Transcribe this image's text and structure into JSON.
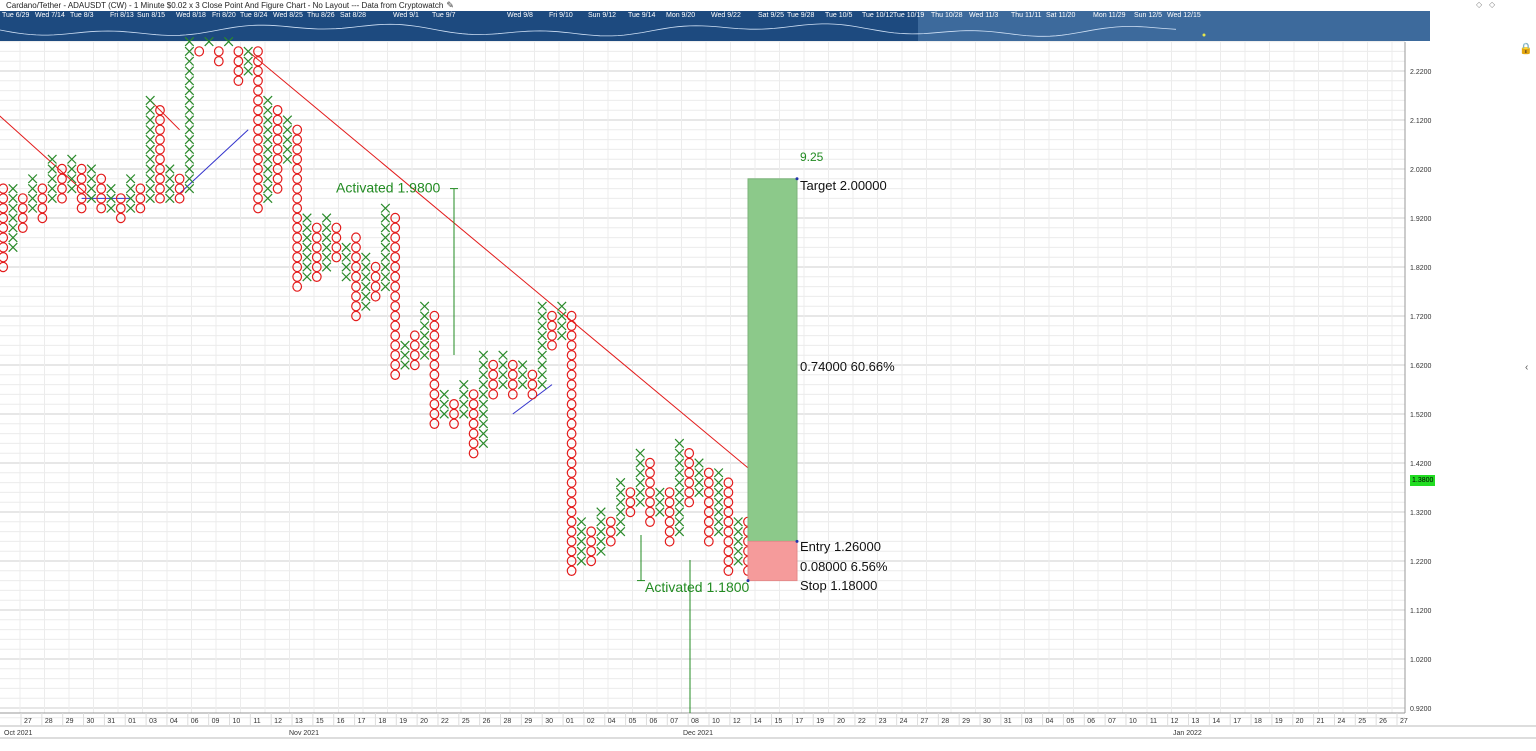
{
  "header": {
    "title": "Cardano/Tether - ADAUSDT (CW) - 1 Minute $0.02 x 3 Close Point And Figure Chart - No Layout --- Data from Cryptowatch"
  },
  "navigator": {
    "dates": [
      "Tue 6/29",
      "Wed 7/14",
      "Tue 8/3",
      "Fri 8/13",
      "Sun 8/15",
      "Wed 8/18",
      "Fri 8/20",
      "Tue 8/24",
      "Wed 8/25",
      "Thu 8/26",
      "Sat 8/28",
      "Wed 9/1",
      "Tue 9/7",
      "Wed 9/8",
      "Fri 9/10",
      "Sun 9/12",
      "Tue 9/14",
      "Mon 9/20",
      "Wed 9/22",
      "Sat 9/25",
      "Tue 9/28",
      "Tue 10/5",
      "Tue 10/12",
      "Tue 10/19",
      "Thu 10/28",
      "Wed 11/3",
      "Thu 11/11",
      "Sat 11/20",
      "Mon 11/29",
      "Sun 12/5",
      "Wed 12/15"
    ]
  },
  "icons": {
    "lock": "lock-icon",
    "collapse": "chevron-left-icon",
    "edit": "pencil-icon",
    "diamond1": "diamond-icon",
    "diamond2": "diamond-icon"
  },
  "colors": {
    "x_mark": "#2a8a2a",
    "o_mark": "#e31b1b",
    "trend_down": "#e31b1b",
    "trend_up": "#3333cc",
    "target_zone": "#8cc98a",
    "stop_zone": "#f59b9b",
    "annotation": "#228b22",
    "price_badge": "#22dd22",
    "nav_bg": "#1d4a7f"
  },
  "chart_data": {
    "type": "point-and-figure",
    "box_size": 0.02,
    "reversal": 3,
    "y_axis": {
      "ylim": [
        0.89,
        2.28
      ],
      "ticks": [
        "2.2200",
        "2.1200",
        "2.0200",
        "1.9200",
        "1.8200",
        "1.7200",
        "1.6200",
        "1.5200",
        "1.4200",
        "1.3200",
        "1.2200",
        "1.1200",
        "1.0200",
        "0.9200"
      ]
    },
    "last_price": "1.3800",
    "x_axis": {
      "day_labels": [
        "27",
        "28",
        "29",
        "30",
        "31",
        "01",
        "03",
        "04",
        "06",
        "09",
        "10",
        "11",
        "12",
        "13",
        "15",
        "16",
        "17",
        "18",
        "19",
        "20",
        "22",
        "25",
        "26",
        "28",
        "29",
        "30",
        "01",
        "02",
        "04",
        "05",
        "06",
        "07",
        "08",
        "10",
        "12",
        "14",
        "15",
        "17",
        "19",
        "20",
        "22",
        "23",
        "24",
        "27",
        "28",
        "29",
        "30",
        "31",
        "03",
        "04",
        "05",
        "06",
        "07",
        "10",
        "11",
        "12",
        "13",
        "14",
        "17",
        "18",
        "19",
        "20",
        "21",
        "24",
        "25",
        "26",
        "27"
      ],
      "month_labels": [
        "Oct 2021",
        "Nov 2021",
        "Dec 2021",
        "Jan 2022"
      ]
    },
    "columns": [
      {
        "t": "O",
        "hi": 1.98,
        "lo": 1.82
      },
      {
        "t": "X",
        "hi": 1.98,
        "lo": 1.86
      },
      {
        "t": "O",
        "hi": 1.96,
        "lo": 1.9
      },
      {
        "t": "X",
        "hi": 2.0,
        "lo": 1.94
      },
      {
        "t": "O",
        "hi": 1.98,
        "lo": 1.92
      },
      {
        "t": "X",
        "hi": 2.04,
        "lo": 1.96
      },
      {
        "t": "O",
        "hi": 2.02,
        "lo": 1.96
      },
      {
        "t": "X",
        "hi": 2.04,
        "lo": 1.98
      },
      {
        "t": "O",
        "hi": 2.02,
        "lo": 1.94
      },
      {
        "t": "X",
        "hi": 2.02,
        "lo": 1.96
      },
      {
        "t": "O",
        "hi": 2.0,
        "lo": 1.94
      },
      {
        "t": "X",
        "hi": 1.98,
        "lo": 1.94
      },
      {
        "t": "O",
        "hi": 1.96,
        "lo": 1.92
      },
      {
        "t": "X",
        "hi": 2.0,
        "lo": 1.94
      },
      {
        "t": "O",
        "hi": 1.98,
        "lo": 1.94
      },
      {
        "t": "X",
        "hi": 2.16,
        "lo": 1.96
      },
      {
        "t": "O",
        "hi": 2.14,
        "lo": 1.96
      },
      {
        "t": "X",
        "hi": 2.02,
        "lo": 1.96
      },
      {
        "t": "O",
        "hi": 2.0,
        "lo": 1.96
      },
      {
        "t": "X",
        "hi": 2.28,
        "lo": 1.98
      },
      {
        "t": "O",
        "hi": 2.26,
        "lo": 2.26
      },
      {
        "t": "X",
        "hi": 2.28,
        "lo": 2.28
      },
      {
        "t": "O",
        "hi": 2.26,
        "lo": 2.24
      },
      {
        "t": "X",
        "hi": 2.28,
        "lo": 2.28
      },
      {
        "t": "O",
        "hi": 2.26,
        "lo": 2.2
      },
      {
        "t": "X",
        "hi": 2.26,
        "lo": 2.22
      },
      {
        "t": "O",
        "hi": 2.26,
        "lo": 1.94
      },
      {
        "t": "X",
        "hi": 2.16,
        "lo": 1.96
      },
      {
        "t": "O",
        "hi": 2.14,
        "lo": 1.98
      },
      {
        "t": "X",
        "hi": 2.12,
        "lo": 2.04
      },
      {
        "t": "O",
        "hi": 2.1,
        "lo": 1.78
      },
      {
        "t": "X",
        "hi": 1.92,
        "lo": 1.8
      },
      {
        "t": "O",
        "hi": 1.9,
        "lo": 1.8
      },
      {
        "t": "X",
        "hi": 1.92,
        "lo": 1.82
      },
      {
        "t": "O",
        "hi": 1.9,
        "lo": 1.84
      },
      {
        "t": "X",
        "hi": 1.86,
        "lo": 1.8
      },
      {
        "t": "O",
        "hi": 1.88,
        "lo": 1.72
      },
      {
        "t": "X",
        "hi": 1.84,
        "lo": 1.74
      },
      {
        "t": "O",
        "hi": 1.82,
        "lo": 1.76
      },
      {
        "t": "X",
        "hi": 1.94,
        "lo": 1.78
      },
      {
        "t": "O",
        "hi": 1.92,
        "lo": 1.6
      },
      {
        "t": "X",
        "hi": 1.66,
        "lo": 1.62
      },
      {
        "t": "O",
        "hi": 1.68,
        "lo": 1.62
      },
      {
        "t": "X",
        "hi": 1.74,
        "lo": 1.64
      },
      {
        "t": "O",
        "hi": 1.72,
        "lo": 1.5
      },
      {
        "t": "X",
        "hi": 1.56,
        "lo": 1.52
      },
      {
        "t": "O",
        "hi": 1.54,
        "lo": 1.5
      },
      {
        "t": "X",
        "hi": 1.58,
        "lo": 1.52
      },
      {
        "t": "O",
        "hi": 1.56,
        "lo": 1.44
      },
      {
        "t": "X",
        "hi": 1.64,
        "lo": 1.46
      },
      {
        "t": "O",
        "hi": 1.62,
        "lo": 1.56
      },
      {
        "t": "X",
        "hi": 1.64,
        "lo": 1.58
      },
      {
        "t": "O",
        "hi": 1.62,
        "lo": 1.56
      },
      {
        "t": "X",
        "hi": 1.62,
        "lo": 1.58
      },
      {
        "t": "O",
        "hi": 1.6,
        "lo": 1.56
      },
      {
        "t": "X",
        "hi": 1.74,
        "lo": 1.58
      },
      {
        "t": "O",
        "hi": 1.72,
        "lo": 1.66
      },
      {
        "t": "X",
        "hi": 1.74,
        "lo": 1.68
      },
      {
        "t": "O",
        "hi": 1.72,
        "lo": 1.2
      },
      {
        "t": "X",
        "hi": 1.3,
        "lo": 1.22
      },
      {
        "t": "O",
        "hi": 1.28,
        "lo": 1.22
      },
      {
        "t": "X",
        "hi": 1.32,
        "lo": 1.24
      },
      {
        "t": "O",
        "hi": 1.3,
        "lo": 1.26
      },
      {
        "t": "X",
        "hi": 1.38,
        "lo": 1.28
      },
      {
        "t": "O",
        "hi": 1.36,
        "lo": 1.32
      },
      {
        "t": "X",
        "hi": 1.44,
        "lo": 1.34
      },
      {
        "t": "O",
        "hi": 1.42,
        "lo": 1.3
      },
      {
        "t": "X",
        "hi": 1.36,
        "lo": 1.32
      },
      {
        "t": "O",
        "hi": 1.36,
        "lo": 1.26
      },
      {
        "t": "X",
        "hi": 1.46,
        "lo": 1.28
      },
      {
        "t": "O",
        "hi": 1.44,
        "lo": 1.34
      },
      {
        "t": "X",
        "hi": 1.42,
        "lo": 1.36
      },
      {
        "t": "O",
        "hi": 1.4,
        "lo": 1.26
      },
      {
        "t": "X",
        "hi": 1.4,
        "lo": 1.28
      },
      {
        "t": "O",
        "hi": 1.38,
        "lo": 1.2
      },
      {
        "t": "X",
        "hi": 1.3,
        "lo": 1.22
      },
      {
        "t": "O",
        "hi": 1.3,
        "lo": 1.2
      },
      {
        "t": "X",
        "hi": 1.28,
        "lo": 1.22
      },
      {
        "t": "O",
        "hi": 1.28,
        "lo": 1.22
      },
      {
        "t": "X",
        "hi": 1.36,
        "lo": 1.24
      }
    ],
    "trendlines": [
      {
        "kind": "bearish",
        "from": {
          "col": -1,
          "price": 2.14
        },
        "to": {
          "col": 9,
          "price": 1.96
        }
      },
      {
        "kind": "bearish",
        "from": {
          "col": 15,
          "price": 2.16
        },
        "to": {
          "col": 18,
          "price": 2.1
        }
      },
      {
        "kind": "bearish",
        "from": {
          "col": 25,
          "price": 2.26
        },
        "to": {
          "col": 79,
          "price": 1.36
        }
      },
      {
        "kind": "bullish",
        "from": {
          "col": 8,
          "price": 1.96
        },
        "to": {
          "col": 13,
          "price": 1.96
        }
      },
      {
        "kind": "bullish",
        "from": {
          "col": 18,
          "price": 1.97
        },
        "to": {
          "col": 25,
          "price": 2.1
        }
      },
      {
        "kind": "bullish",
        "from": {
          "col": 52,
          "price": 1.52
        },
        "to": {
          "col": 56,
          "price": 1.58
        }
      },
      {
        "kind": "bullish",
        "from": {
          "col": 77,
          "price": 1.22
        },
        "to": {
          "col": 79,
          "price": 1.24
        }
      }
    ],
    "annotations": [
      {
        "label": "Activated 1.9800",
        "price": 1.98,
        "col": 46
      },
      {
        "label": "Activated 1.1800",
        "price": 1.18,
        "col": 65
      }
    ],
    "position": {
      "target_count": "9.25",
      "target_label": "Target",
      "target": "2.00000",
      "reward": "0.74000",
      "reward_pct": "60.66%",
      "entry_label": "Entry",
      "entry": "1.26000",
      "risk": "0.08000",
      "risk_pct": "6.56%",
      "stop_label": "Stop",
      "stop": "1.18000"
    }
  }
}
